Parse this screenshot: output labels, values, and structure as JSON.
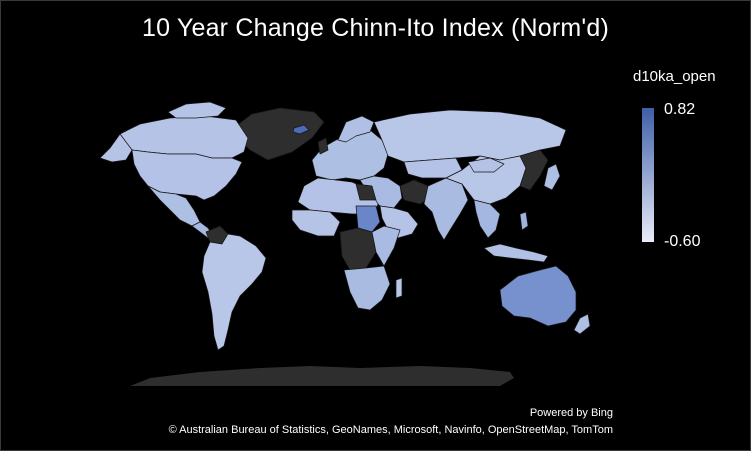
{
  "title": "10 Year Change Chinn-Ito Index (Norm'd)",
  "legend": {
    "field": "d10ka_open",
    "max": "0.82",
    "min": "-0.60",
    "color_high": "#3e5fa7",
    "color_low": "#e9edf9"
  },
  "attribution": {
    "powered_by": "Powered by Bing",
    "copyright": "© Australian Bureau of Statistics, GeoNames, Microsoft, Navinfo, OpenStreetMap, TomTom"
  },
  "colors": {
    "background": "#000000",
    "no_data": "#2e2e2e",
    "land_default": "#b3c2e6",
    "border": "#1a1a1a"
  }
}
